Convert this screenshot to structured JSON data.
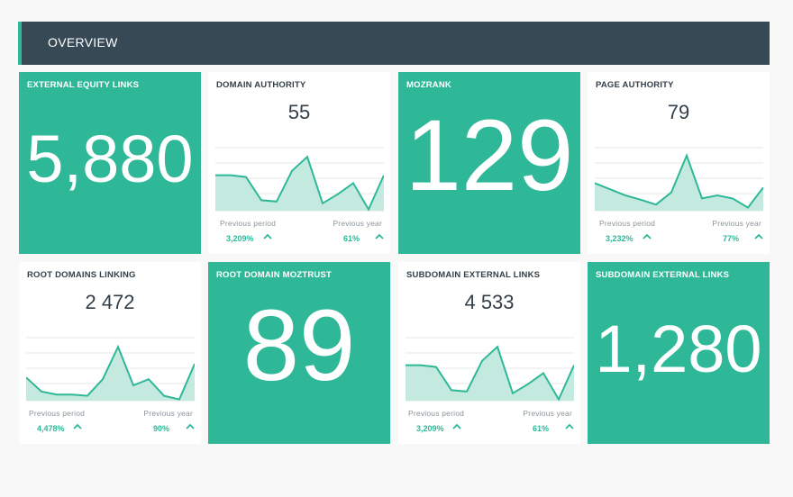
{
  "header": {
    "title": "OVERVIEW"
  },
  "colors": {
    "accent": "#2eb898",
    "header_bg": "#364955",
    "text": "#333f48",
    "muted": "#8b949b"
  },
  "cards": [
    {
      "title": "EXTERNAL EQUITY LINKS",
      "value": "5,880",
      "style": "green"
    },
    {
      "title": "DOMAIN AUTHORITY",
      "value": "55",
      "style": "white",
      "spark": [
        0.58,
        0.58,
        0.55,
        0.17,
        0.15,
        0.65,
        0.88,
        0.12,
        0.27,
        0.45,
        0.02,
        0.58
      ],
      "prev_label": "Previous period",
      "prev_value": "3,209%",
      "year_label": "Previous year",
      "year_value": "61%"
    },
    {
      "title": "MOZRANK",
      "value": "129",
      "style": "green"
    },
    {
      "title": "PAGE AUTHORITY",
      "value": "79",
      "style": "white",
      "spark": [
        0.45,
        0.35,
        0.25,
        0.18,
        0.1,
        0.3,
        0.9,
        0.2,
        0.25,
        0.2,
        0.05,
        0.38
      ],
      "prev_label": "Previous period",
      "prev_value": "3,232%",
      "year_label": "Previous year",
      "year_value": "77%"
    },
    {
      "title": "ROOT DOMAINS LINKING",
      "value": "2 472",
      "style": "white",
      "spark": [
        0.38,
        0.15,
        0.1,
        0.1,
        0.08,
        0.35,
        0.88,
        0.25,
        0.35,
        0.08,
        0.02,
        0.6
      ],
      "prev_label": "Previous period",
      "prev_value": "4,478%",
      "year_label": "Previous year",
      "year_value": "90%"
    },
    {
      "title": "ROOT DOMAIN MOZTRUST",
      "value": "89",
      "style": "green"
    },
    {
      "title": "SUBDOMAIN EXTERNAL LINKS",
      "value": "4 533",
      "style": "white",
      "spark": [
        0.58,
        0.58,
        0.55,
        0.17,
        0.15,
        0.65,
        0.88,
        0.12,
        0.27,
        0.45,
        0.02,
        0.58
      ],
      "prev_label": "Previous period",
      "prev_value": "3,209%",
      "year_label": "Previous year",
      "year_value": "61%"
    },
    {
      "title": "SUBDOMAIN EXTERNAL LINKS",
      "value": "1,280",
      "style": "green"
    }
  ]
}
